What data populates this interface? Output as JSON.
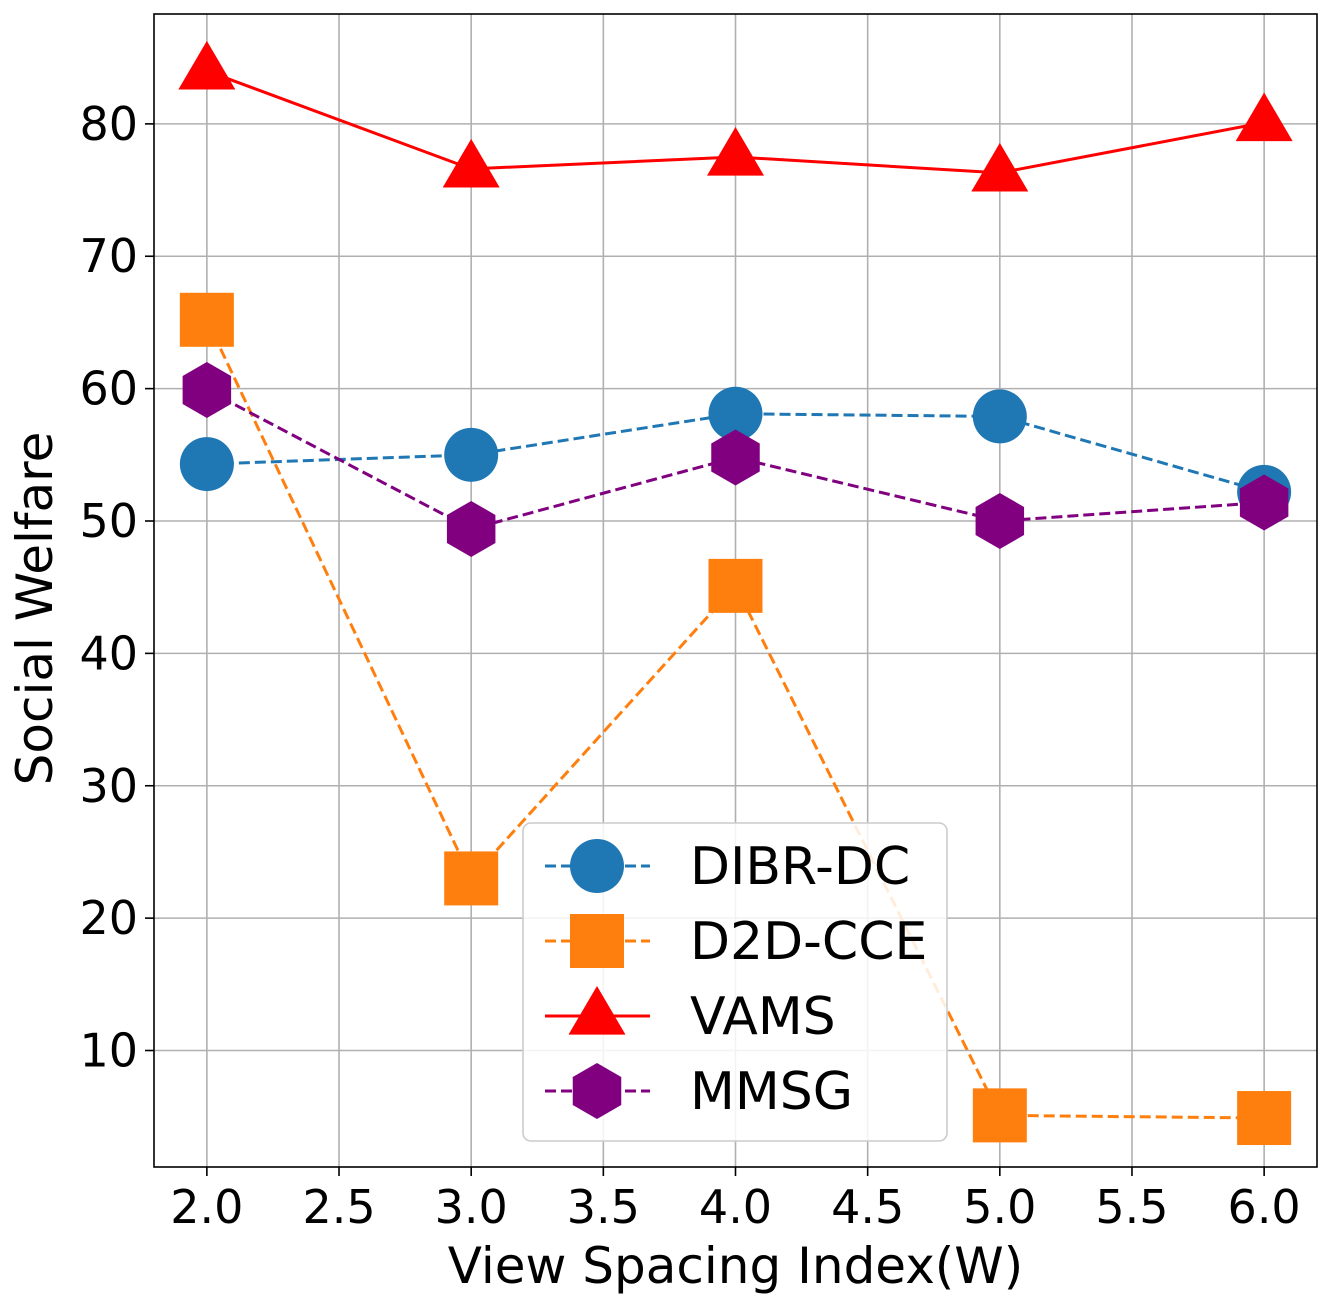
{
  "chart_data": {
    "type": "line",
    "xlabel": "View Spacing Index(W)",
    "ylabel": "Social Welfare",
    "xlim": [
      1.8,
      6.2
    ],
    "ylim": [
      1.2,
      88.3
    ],
    "xticks": [
      2.0,
      2.5,
      3.0,
      3.5,
      4.0,
      4.5,
      5.0,
      5.5,
      6.0
    ],
    "xtick_labels": [
      "2.0",
      "2.5",
      "3.0",
      "3.5",
      "4.0",
      "4.5",
      "5.0",
      "5.5",
      "6.0"
    ],
    "yticks": [
      10,
      20,
      30,
      40,
      50,
      60,
      70,
      80
    ],
    "ytick_labels": [
      "10",
      "20",
      "30",
      "40",
      "50",
      "60",
      "70",
      "80"
    ],
    "grid": true,
    "legend_position": "bottom-center",
    "x": [
      2.0,
      3.0,
      4.0,
      5.0,
      6.0
    ],
    "series": [
      {
        "name": "DIBR-DC",
        "values": [
          54.3,
          55.0,
          58.1,
          57.9,
          52.2
        ],
        "color": "#1f77b4",
        "marker": "circle",
        "linestyle": "dashed"
      },
      {
        "name": "D2D-CCE",
        "values": [
          65.2,
          23.0,
          45.1,
          5.1,
          4.9
        ],
        "color": "#ff7f0e",
        "marker": "square",
        "linestyle": "dashed"
      },
      {
        "name": "VAMS",
        "values": [
          84.0,
          76.6,
          77.5,
          76.3,
          80.1
        ],
        "color": "#ff0000",
        "marker": "triangle",
        "linestyle": "solid"
      },
      {
        "name": "MMSG",
        "values": [
          59.9,
          49.4,
          54.8,
          50.0,
          51.4
        ],
        "color": "#800080",
        "marker": "hexagon",
        "linestyle": "dashed"
      }
    ]
  }
}
